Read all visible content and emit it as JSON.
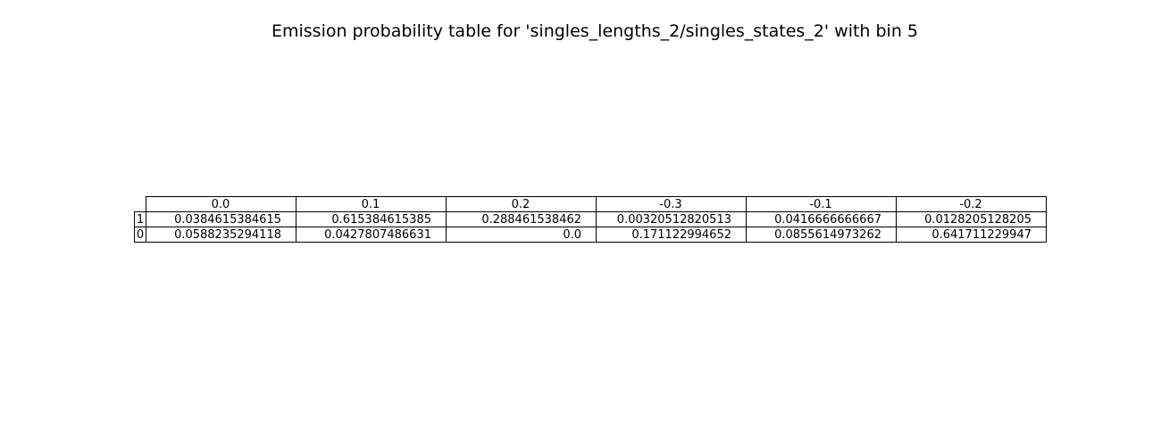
{
  "chart_data": {
    "type": "table",
    "title": "Emission probability table for 'singles_lengths_2/singles_states_2' with bin 5",
    "col_headers": [
      "0.0",
      "0.1",
      "0.2",
      "-0.3",
      "-0.1",
      "-0.2"
    ],
    "row_headers": [
      "1",
      "0"
    ],
    "cells": [
      [
        "0.0384615384615",
        "0.615384615385",
        "0.288461538462",
        "0.00320512820513",
        "0.0416666666667",
        "0.0128205128205"
      ],
      [
        "0.0588235294118",
        "0.0427807486631",
        "0.0",
        "0.171122994652",
        "0.0855614973262",
        "0.641711229947"
      ]
    ]
  }
}
